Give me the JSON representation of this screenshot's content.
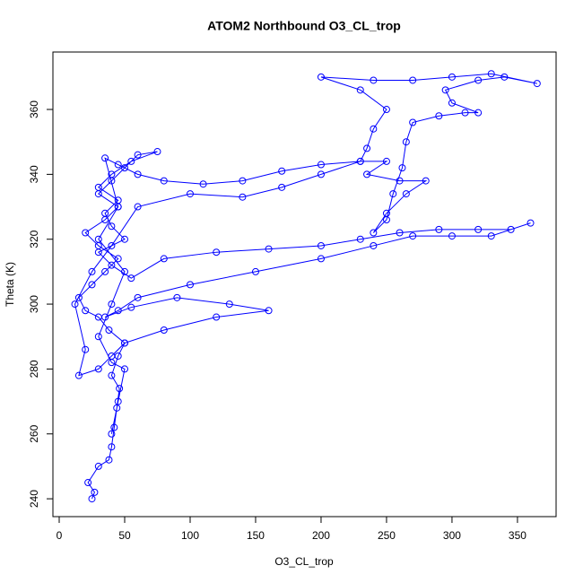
{
  "chart_data": {
    "type": "scatter",
    "title": "ATOM2 Northbound O3_CL_trop",
    "x_label": "O3_CL_trop",
    "y_label": "Theta (K)",
    "connect_points": true,
    "color": "#0000ff",
    "xlim": [
      -4.8,
      379.5
    ],
    "ylim": [
      234.5,
      377.7
    ],
    "xticks": [
      0,
      50,
      100,
      150,
      200,
      250,
      300,
      350
    ],
    "yticks": [
      240,
      260,
      280,
      300,
      320,
      340,
      360
    ],
    "x": [
      25,
      27,
      22,
      30,
      38,
      40,
      42,
      44,
      46,
      40,
      45,
      50,
      38,
      30,
      20,
      15,
      25,
      35,
      45,
      30,
      20,
      35,
      45,
      30,
      40,
      50,
      60,
      75,
      55,
      40,
      30,
      45,
      35,
      40,
      50,
      30,
      40,
      55,
      80,
      120,
      160,
      200,
      230,
      260,
      290,
      320,
      345,
      360,
      330,
      300,
      270,
      240,
      200,
      150,
      100,
      60,
      45,
      35,
      55,
      90,
      130,
      160,
      120,
      80,
      50,
      40,
      30,
      15,
      20,
      12,
      25,
      40,
      60,
      100,
      140,
      170,
      200,
      230,
      250,
      235,
      260,
      280,
      265,
      250,
      240,
      250,
      255,
      262,
      265,
      270,
      290,
      310,
      320,
      300,
      295,
      320,
      340,
      365,
      330,
      300,
      270,
      240,
      200,
      230,
      250,
      240,
      235,
      230,
      200,
      170,
      140,
      110,
      80,
      60,
      45,
      35,
      45,
      30,
      50,
      40,
      30,
      40,
      50,
      45,
      40
    ],
    "values": [
      240,
      242,
      245,
      250,
      252,
      256,
      262,
      268,
      274,
      278,
      284,
      288,
      292,
      296,
      298,
      302,
      306,
      310,
      314,
      318,
      322,
      326,
      330,
      334,
      338,
      342,
      346,
      347,
      344,
      340,
      336,
      332,
      328,
      324,
      320,
      316,
      312,
      308,
      314,
      316,
      317,
      318,
      320,
      322,
      323,
      323,
      323,
      325,
      321,
      321,
      321,
      318,
      314,
      310,
      306,
      302,
      298,
      296,
      299,
      302,
      300,
      298,
      296,
      292,
      288,
      284,
      280,
      278,
      286,
      300,
      310,
      318,
      330,
      334,
      333,
      336,
      340,
      344,
      344,
      340,
      338,
      338,
      334,
      328,
      322,
      326,
      334,
      342,
      350,
      356,
      358,
      359,
      359,
      362,
      366,
      369,
      370,
      368,
      371,
      370,
      369,
      369,
      370,
      366,
      360,
      354,
      348,
      344,
      343,
      341,
      338,
      337,
      338,
      340,
      343,
      345,
      330,
      320,
      310,
      300,
      290,
      282,
      280,
      270,
      260
    ]
  }
}
